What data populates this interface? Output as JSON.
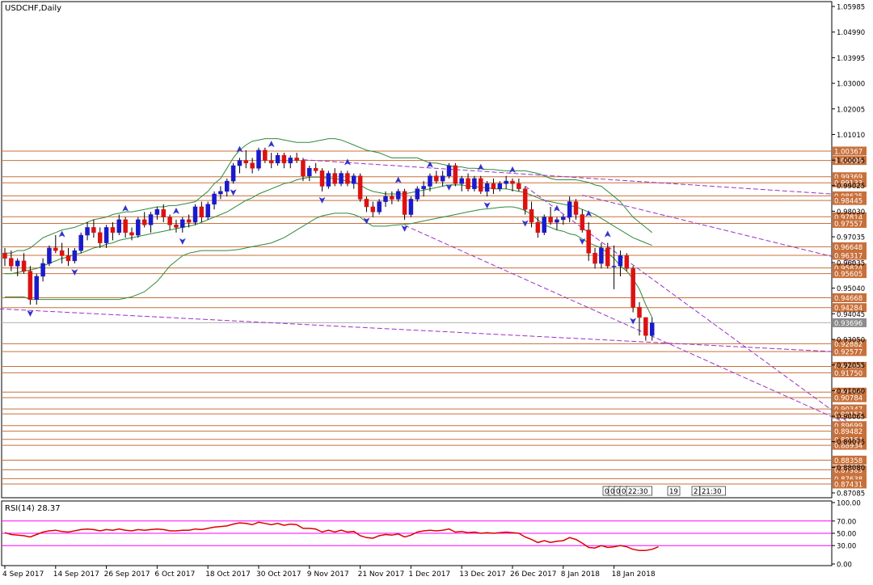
{
  "chart_data": [
    {
      "type": "candlestick",
      "title": "USDCHF,Daily",
      "ylim": [
        0.87,
        1.0605
      ],
      "y_ticks": [
        "1.05985",
        "1.04990",
        "1.03995",
        "1.03000",
        "1.02005",
        "1.01010",
        "1.00015",
        "0.99025",
        "0.98030",
        "0.97035",
        "0.96035",
        "0.95040",
        "0.94045",
        "0.93050",
        "0.92055",
        "0.91060",
        "0.90065",
        "0.89075",
        "0.88080",
        "0.87085"
      ],
      "x_ticks": [
        "4 Sep 2017",
        "14 Sep 2017",
        "26 Sep 2017",
        "6 Oct 2017",
        "18 Oct 2017",
        "30 Oct 2017",
        "9 Nov 2017",
        "21 Nov 2017",
        "1 Dec 2017",
        "13 Dec 2017",
        "26 Dec 2017",
        "8 Jan 2018",
        "18 Jan 2018"
      ],
      "x_tick_index": [
        0,
        8,
        16,
        24,
        32,
        40,
        48,
        56,
        64,
        72,
        80,
        88,
        96
      ],
      "current_price": "0.93696",
      "level_labels": [
        "1.00367",
        "1.00000",
        "0.99369",
        "0.99133",
        "0.98625",
        "0.98445",
        "0.97814",
        "0.97557",
        "0.96648",
        "0.96317",
        "0.95824",
        "0.95605",
        "0.94668",
        "0.94284",
        "0.92882",
        "0.92577",
        "0.92000",
        "0.91750",
        "0.91000",
        "0.90784",
        "0.90347",
        "0.90152",
        "0.89699",
        "0.89482",
        "0.89164",
        "0.88934",
        "0.88358",
        "0.87983",
        "0.87638",
        "0.87431"
      ],
      "session_labels": [
        "0",
        "0",
        "0",
        "0",
        "22:30",
        "19",
        "2",
        "21:30"
      ],
      "ohlc": [
        [
          0.964,
          0.966,
          0.959,
          0.962
        ],
        [
          0.962,
          0.965,
          0.957,
          0.959
        ],
        [
          0.959,
          0.962,
          0.955,
          0.961
        ],
        [
          0.961,
          0.964,
          0.956,
          0.957
        ],
        [
          0.957,
          0.959,
          0.944,
          0.946
        ],
        [
          0.946,
          0.956,
          0.944,
          0.955
        ],
        [
          0.955,
          0.962,
          0.953,
          0.96
        ],
        [
          0.96,
          0.967,
          0.959,
          0.966
        ],
        [
          0.966,
          0.971,
          0.964,
          0.965
        ],
        [
          0.965,
          0.968,
          0.96,
          0.963
        ],
        [
          0.963,
          0.966,
          0.959,
          0.961
        ],
        [
          0.961,
          0.966,
          0.96,
          0.965
        ],
        [
          0.965,
          0.972,
          0.964,
          0.971
        ],
        [
          0.971,
          0.976,
          0.969,
          0.974
        ],
        [
          0.974,
          0.977,
          0.97,
          0.972
        ],
        [
          0.972,
          0.974,
          0.966,
          0.968
        ],
        [
          0.968,
          0.975,
          0.966,
          0.974
        ],
        [
          0.974,
          0.976,
          0.969,
          0.972
        ],
        [
          0.972,
          0.979,
          0.971,
          0.977
        ],
        [
          0.977,
          0.978,
          0.97,
          0.972
        ],
        [
          0.972,
          0.974,
          0.969,
          0.971
        ],
        [
          0.971,
          0.978,
          0.97,
          0.977
        ],
        [
          0.977,
          0.98,
          0.974,
          0.975
        ],
        [
          0.975,
          0.98,
          0.972,
          0.979
        ],
        [
          0.979,
          0.982,
          0.977,
          0.981
        ],
        [
          0.981,
          0.983,
          0.976,
          0.978
        ],
        [
          0.978,
          0.979,
          0.973,
          0.975
        ],
        [
          0.975,
          0.977,
          0.972,
          0.974
        ],
        [
          0.974,
          0.978,
          0.972,
          0.977
        ],
        [
          0.977,
          0.979,
          0.974,
          0.976
        ],
        [
          0.976,
          0.983,
          0.975,
          0.982
        ],
        [
          0.982,
          0.984,
          0.976,
          0.978
        ],
        [
          0.978,
          0.984,
          0.977,
          0.983
        ],
        [
          0.983,
          0.988,
          0.981,
          0.987
        ],
        [
          0.987,
          0.99,
          0.985,
          0.988
        ],
        [
          0.988,
          0.993,
          0.986,
          0.992
        ],
        [
          0.992,
          0.999,
          0.991,
          0.998
        ],
        [
          0.998,
          1.001,
          0.995,
          1.0
        ],
        [
          1.0,
          1.004,
          0.997,
          0.999
        ],
        [
          0.999,
          1.001,
          0.995,
          0.997
        ],
        [
          0.997,
          1.005,
          0.996,
          1.004
        ],
        [
          1.004,
          1.005,
          0.999,
          1.0
        ],
        [
          1.0,
          1.003,
          0.997,
          0.999
        ],
        [
          0.999,
          1.003,
          0.998,
          1.002
        ],
        [
          1.002,
          1.003,
          0.997,
          0.999
        ],
        [
          0.999,
          1.002,
          0.997,
          1.001
        ],
        [
          1.001,
          1.003,
          0.999,
          1.0
        ],
        [
          1.0,
          1.001,
          0.992,
          0.994
        ],
        [
          0.994,
          0.998,
          0.992,
          0.997
        ],
        [
          0.997,
          0.999,
          0.995,
          0.996
        ],
        [
          0.996,
          0.997,
          0.988,
          0.99
        ],
        [
          0.99,
          0.996,
          0.989,
          0.995
        ],
        [
          0.995,
          0.997,
          0.99,
          0.991
        ],
        [
          0.991,
          0.996,
          0.99,
          0.995
        ],
        [
          0.995,
          0.996,
          0.99,
          0.991
        ],
        [
          0.991,
          0.995,
          0.989,
          0.994
        ],
        [
          0.994,
          0.995,
          0.984,
          0.985
        ],
        [
          0.985,
          0.986,
          0.98,
          0.982
        ],
        [
          0.982,
          0.984,
          0.978,
          0.98
        ],
        [
          0.98,
          0.985,
          0.979,
          0.984
        ],
        [
          0.984,
          0.988,
          0.982,
          0.986
        ],
        [
          0.986,
          0.988,
          0.983,
          0.985
        ],
        [
          0.985,
          0.989,
          0.984,
          0.988
        ],
        [
          0.988,
          0.989,
          0.977,
          0.979
        ],
        [
          0.979,
          0.986,
          0.978,
          0.985
        ],
        [
          0.985,
          0.99,
          0.984,
          0.989
        ],
        [
          0.989,
          0.992,
          0.986,
          0.99
        ],
        [
          0.99,
          0.995,
          0.988,
          0.994
        ],
        [
          0.994,
          0.996,
          0.991,
          0.992
        ],
        [
          0.992,
          0.996,
          0.99,
          0.994
        ],
        [
          0.994,
          0.999,
          0.993,
          0.998
        ],
        [
          0.998,
          0.999,
          0.99,
          0.991
        ],
        [
          0.991,
          0.994,
          0.988,
          0.993
        ],
        [
          0.993,
          0.995,
          0.988,
          0.989
        ],
        [
          0.989,
          0.994,
          0.988,
          0.993
        ],
        [
          0.993,
          0.994,
          0.987,
          0.988
        ],
        [
          0.988,
          0.992,
          0.986,
          0.991
        ],
        [
          0.991,
          0.993,
          0.987,
          0.989
        ],
        [
          0.989,
          0.992,
          0.988,
          0.991
        ],
        [
          0.991,
          0.994,
          0.989,
          0.992
        ],
        [
          0.992,
          0.993,
          0.988,
          0.991
        ],
        [
          0.991,
          0.993,
          0.988,
          0.989
        ],
        [
          0.989,
          0.99,
          0.979,
          0.981
        ],
        [
          0.981,
          0.984,
          0.974,
          0.976
        ],
        [
          0.976,
          0.978,
          0.97,
          0.972
        ],
        [
          0.972,
          0.979,
          0.971,
          0.978
        ],
        [
          0.978,
          0.982,
          0.975,
          0.976
        ],
        [
          0.976,
          0.978,
          0.973,
          0.977
        ],
        [
          0.977,
          0.979,
          0.975,
          0.978
        ],
        [
          0.978,
          0.986,
          0.976,
          0.984
        ],
        [
          0.984,
          0.985,
          0.977,
          0.979
        ],
        [
          0.979,
          0.981,
          0.972,
          0.973
        ],
        [
          0.973,
          0.976,
          0.961,
          0.964
        ],
        [
          0.964,
          0.966,
          0.958,
          0.96
        ],
        [
          0.96,
          0.968,
          0.958,
          0.966
        ],
        [
          0.966,
          0.968,
          0.958,
          0.959
        ],
        [
          0.959,
          0.967,
          0.95,
          0.959
        ],
        [
          0.959,
          0.965,
          0.955,
          0.963
        ],
        [
          0.963,
          0.964,
          0.957,
          0.958
        ],
        [
          0.958,
          0.959,
          0.941,
          0.943
        ],
        [
          0.943,
          0.945,
          0.932,
          0.939
        ],
        [
          0.939,
          0.939,
          0.93,
          0.932
        ],
        [
          0.932,
          0.939,
          0.93,
          0.9369
        ]
      ],
      "ma_values": [
        0.956,
        0.956,
        0.9565,
        0.957,
        0.9575,
        0.958,
        0.959,
        0.96,
        0.961,
        0.962,
        0.9625,
        0.9635,
        0.964,
        0.965,
        0.966,
        0.9665,
        0.9675,
        0.968,
        0.969,
        0.9695,
        0.97,
        0.9705,
        0.971,
        0.9715,
        0.972,
        0.9725,
        0.973,
        0.9735,
        0.974,
        0.9745,
        0.975,
        0.976,
        0.977,
        0.978,
        0.979,
        0.98,
        0.9815,
        0.983,
        0.9845,
        0.9855,
        0.987,
        0.988,
        0.989,
        0.99,
        0.991,
        0.9915,
        0.9925,
        0.993,
        0.9935,
        0.9935,
        0.9935,
        0.993,
        0.993,
        0.9925,
        0.992,
        0.9915,
        0.9905,
        0.989,
        0.988,
        0.9875,
        0.987,
        0.987,
        0.987,
        0.987,
        0.9875,
        0.988,
        0.9885,
        0.989,
        0.9895,
        0.99,
        0.9905,
        0.9905,
        0.9905,
        0.99,
        0.99,
        0.9895,
        0.9895,
        0.989,
        0.989,
        0.989,
        0.9885,
        0.988,
        0.9875,
        0.9865,
        0.9855,
        0.9845,
        0.984,
        0.9835,
        0.983,
        0.9825,
        0.982,
        0.981,
        0.98,
        0.979,
        0.9775,
        0.976,
        0.9745,
        0.973,
        0.9715,
        0.97,
        0.969,
        0.968,
        0.967
      ],
      "band_upper": [
        0.964,
        0.964,
        0.965,
        0.965,
        0.966,
        0.968,
        0.97,
        0.971,
        0.972,
        0.973,
        0.9735,
        0.974,
        0.975,
        0.976,
        0.977,
        0.9775,
        0.978,
        0.979,
        0.9795,
        0.98,
        0.98,
        0.9805,
        0.981,
        0.9815,
        0.982,
        0.982,
        0.9825,
        0.9825,
        0.983,
        0.9835,
        0.984,
        0.986,
        0.988,
        0.991,
        0.993,
        0.997,
        1.001,
        1.004,
        1.006,
        1.0075,
        1.008,
        1.0085,
        1.0085,
        1.0085,
        1.008,
        1.0075,
        1.007,
        1.007,
        1.007,
        1.0075,
        1.008,
        1.0085,
        1.0085,
        1.008,
        1.007,
        1.006,
        1.005,
        1.004,
        1.0035,
        1.003,
        1.002,
        1.001,
        1.001,
        1.001,
        1.001,
        1.001,
        1.0,
        0.999,
        0.999,
        0.9985,
        0.998,
        0.9975,
        0.9975,
        0.997,
        0.997,
        0.9968,
        0.9965,
        0.9965,
        0.9962,
        0.996,
        0.996,
        0.996,
        0.996,
        0.9955,
        0.995,
        0.994,
        0.993,
        0.9925,
        0.9925,
        0.9925,
        0.9925,
        0.992,
        0.9915,
        0.9905,
        0.99,
        0.988,
        0.986,
        0.984,
        0.981,
        0.978,
        0.976,
        0.974,
        0.972
      ],
      "band_lower": [
        0.947,
        0.947,
        0.947,
        0.947,
        0.946,
        0.946,
        0.946,
        0.946,
        0.946,
        0.946,
        0.946,
        0.946,
        0.946,
        0.946,
        0.946,
        0.946,
        0.946,
        0.946,
        0.946,
        0.9465,
        0.947,
        0.948,
        0.949,
        0.951,
        0.953,
        0.956,
        0.959,
        0.961,
        0.963,
        0.964,
        0.9645,
        0.965,
        0.965,
        0.965,
        0.965,
        0.965,
        0.9652,
        0.9655,
        0.966,
        0.9665,
        0.967,
        0.9675,
        0.968,
        0.969,
        0.97,
        0.9715,
        0.973,
        0.9745,
        0.976,
        0.9775,
        0.9785,
        0.979,
        0.9795,
        0.9795,
        0.9795,
        0.979,
        0.978,
        0.976,
        0.9745,
        0.9745,
        0.9745,
        0.9748,
        0.975,
        0.9752,
        0.9755,
        0.976,
        0.9765,
        0.977,
        0.9775,
        0.978,
        0.9785,
        0.979,
        0.9795,
        0.98,
        0.9805,
        0.981,
        0.9812,
        0.9815,
        0.9818,
        0.982,
        0.982,
        0.9815,
        0.9805,
        0.979,
        0.977,
        0.975,
        0.974,
        0.973,
        0.9725,
        0.9715,
        0.971,
        0.9695,
        0.968,
        0.967,
        0.966,
        0.964,
        0.962,
        0.959,
        0.957,
        0.954,
        0.95,
        0.944,
        0.939
      ],
      "fractals_up": [
        9,
        19,
        27,
        37,
        42,
        54,
        62,
        67,
        75,
        80,
        87,
        92,
        95
      ],
      "fractals_down": [
        4,
        11,
        28,
        36,
        50,
        57,
        63,
        70,
        76,
        82,
        91,
        99
      ]
    },
    {
      "type": "line",
      "title": "RSI(14) 28.37",
      "ylim": [
        0,
        100
      ],
      "y_ticks": [
        "100.00",
        "70.00",
        "50.00",
        "30.00",
        "0.00"
      ],
      "levels": [
        70,
        50,
        30
      ],
      "values": [
        51,
        48,
        47,
        46,
        44,
        48,
        52,
        54,
        55,
        53,
        52,
        54,
        56,
        57,
        56,
        54,
        56,
        55,
        57,
        55,
        54,
        56,
        55,
        56,
        57,
        56,
        54,
        54,
        55,
        55,
        57,
        56,
        58,
        60,
        61,
        62,
        65,
        67,
        66,
        64,
        68,
        66,
        64,
        66,
        63,
        65,
        64,
        58,
        58,
        57,
        52,
        55,
        52,
        55,
        52,
        53,
        46,
        43,
        42,
        46,
        48,
        47,
        49,
        44,
        47,
        52,
        54,
        55,
        54,
        55,
        57,
        52,
        53,
        51,
        52,
        50,
        51,
        50,
        51,
        52,
        51,
        50,
        44,
        40,
        35,
        38,
        35,
        37,
        38,
        43,
        40,
        34,
        27,
        26,
        30,
        27,
        28,
        30,
        28,
        24,
        22,
        22,
        24,
        28
      ],
      "colors": {
        "rsi": "#dd0000",
        "levels": "#ff00ff"
      }
    }
  ]
}
